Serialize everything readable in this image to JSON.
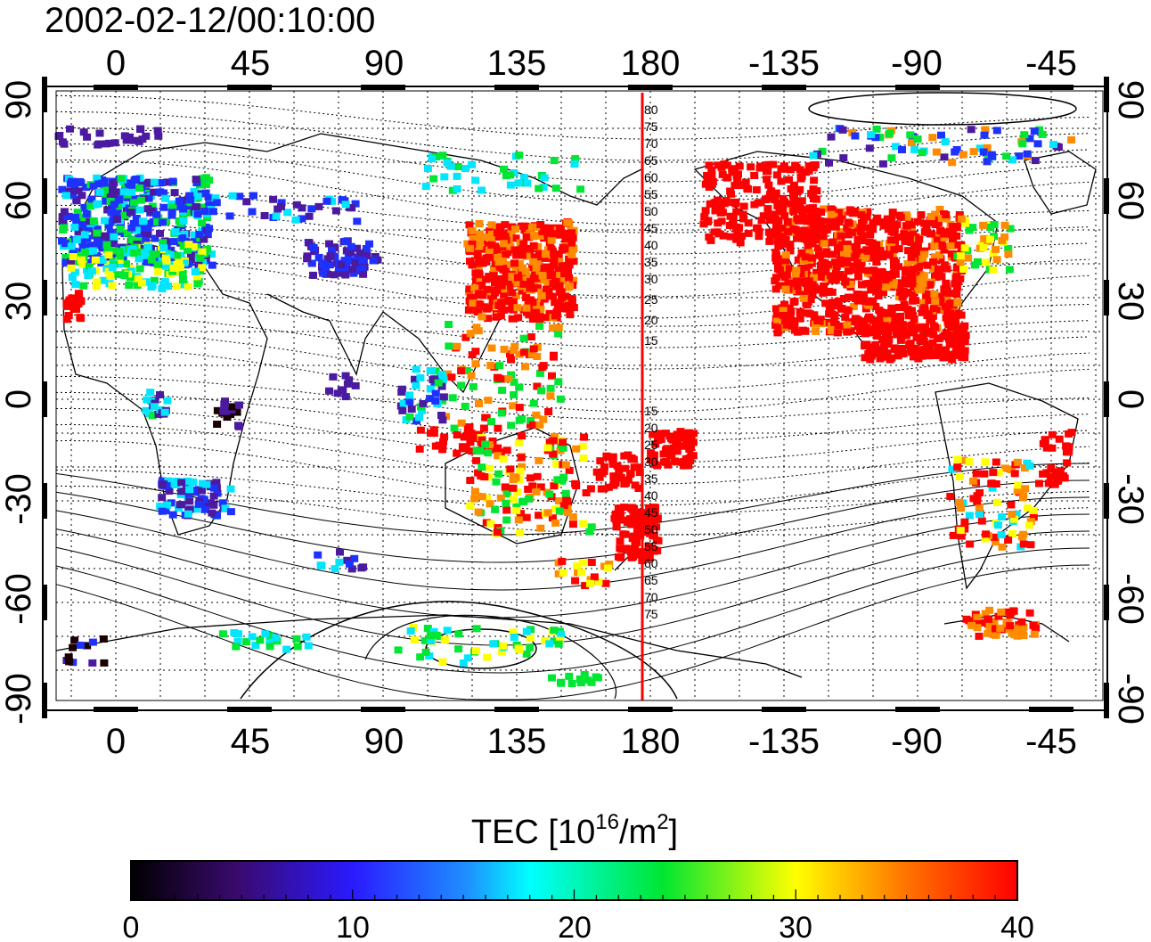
{
  "title": "2002-02-12/00:10:00",
  "map": {
    "top_lon_labels": [
      "0",
      "45",
      "90",
      "135",
      "180",
      "-135",
      "-90",
      "-45"
    ],
    "bottom_lon_labels": [
      "0",
      "45",
      "90",
      "135",
      "180",
      "-135",
      "-90",
      "-45"
    ],
    "left_lat_labels": [
      "90",
      "60",
      "30",
      "0",
      "-30",
      "-60",
      "-90"
    ],
    "right_lat_labels": [
      "90",
      "60",
      "30",
      "0",
      "-30",
      "-60",
      "-90"
    ],
    "north_contour_labels": [
      "80",
      "75",
      "70",
      "65",
      "60",
      "55",
      "50",
      "45",
      "40",
      "35",
      "30",
      "25",
      "20",
      "15"
    ],
    "south_contour_labels": [
      "15",
      "20",
      "25",
      "30",
      "35",
      "40",
      "45",
      "50",
      "55",
      "60",
      "65",
      "70",
      "75"
    ],
    "meridian_color": "#ff0000"
  },
  "colorbar": {
    "label_prefix": "TEC  [10",
    "label_exp1": "16",
    "label_mid": "/m",
    "label_exp2": "2",
    "label_suffix": "]",
    "ticks": [
      "0",
      "10",
      "20",
      "30",
      "40"
    ],
    "min": 0,
    "max": 40
  },
  "palette": {
    "dark": "#1a0000",
    "violet": "#4b1aa0",
    "blue": "#1e32ff",
    "cyan": "#00e6ff",
    "green": "#00e632",
    "yellow": "#ffff00",
    "orange": "#ff8c00",
    "red": "#ff0000"
  }
}
